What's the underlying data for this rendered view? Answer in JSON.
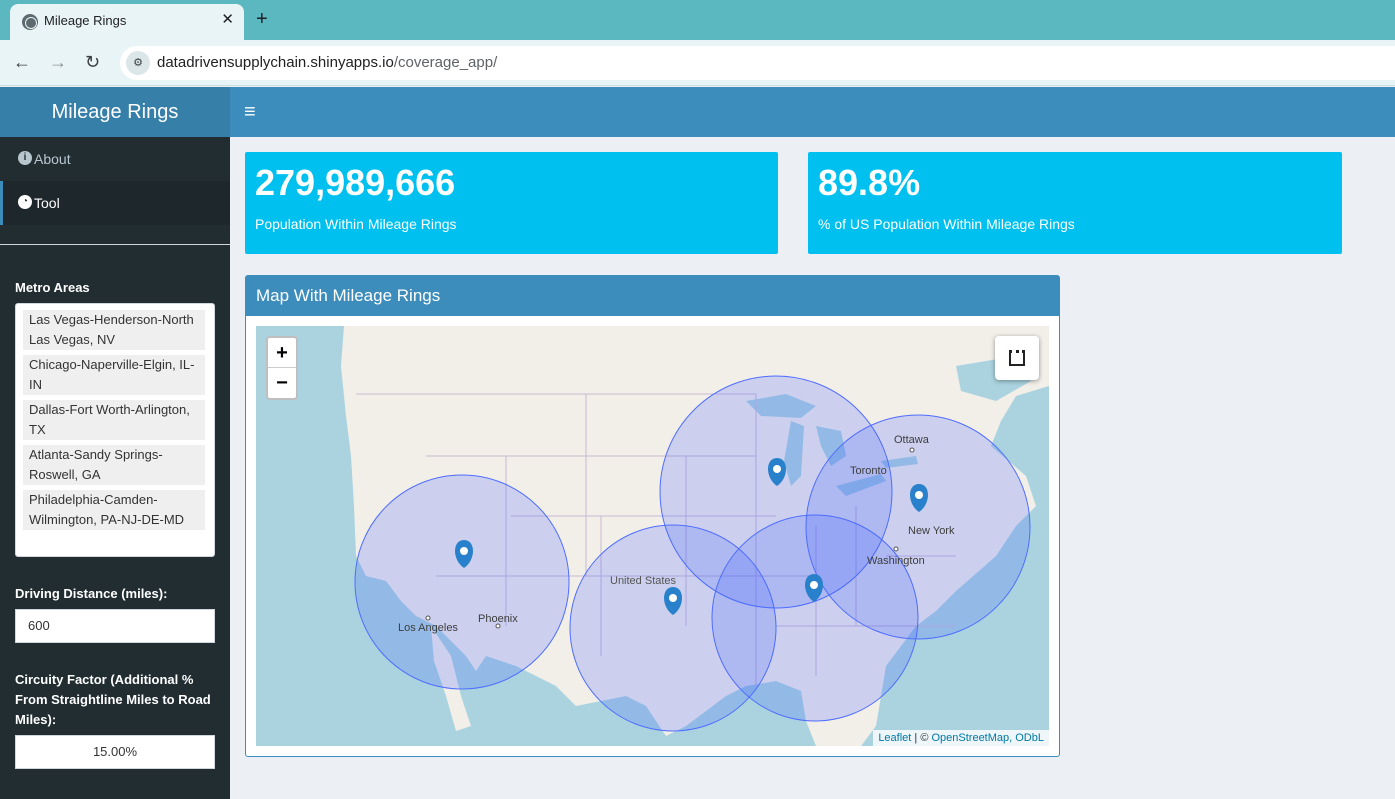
{
  "browser": {
    "tab_title": "Mileage Rings",
    "tab_close": "✕",
    "new_tab": "+",
    "url_host": "datadrivensupplychain.shinyapps.io",
    "url_path": "/coverage_app/",
    "back": "←",
    "forward": "→",
    "reload": "↻"
  },
  "header": {
    "title": "Mileage Rings",
    "menu_toggle": "≡"
  },
  "sidebar": {
    "items": [
      {
        "label": "About",
        "icon": "info-circle-icon"
      },
      {
        "label": "Tool",
        "icon": "dashboard-icon"
      }
    ],
    "metro_label": "Metro Areas",
    "metro_areas": [
      "Las Vegas-Henderson-North Las Vegas, NV",
      "Chicago-Naperville-Elgin, IL-IN",
      "Dallas-Fort Worth-Arlington, TX",
      "Atlanta-Sandy Springs-Roswell, GA",
      "Philadelphia-Camden-Wilmington, PA-NJ-DE-MD"
    ],
    "distance_label": "Driving Distance (miles):",
    "distance_value": "600",
    "circuity_label": "Circuity Factor (Additional % From Straightline Miles to Road Miles):",
    "circuity_value": "15.00%"
  },
  "value_boxes": [
    {
      "value": "279,989,666",
      "subtitle": "Population Within Mileage Rings"
    },
    {
      "value": "89.8%",
      "subtitle": "% of US Population Within Mileage Rings"
    }
  ],
  "map_card": {
    "title": "Map With Mileage Rings",
    "zoom_in": "+",
    "zoom_out": "−",
    "place_labels": {
      "ottawa": "Ottawa",
      "toronto": "Toronto",
      "new_york": "New York",
      "washington": "Washington",
      "united_states": "United States",
      "los_angeles": "Los Angeles",
      "phoenix": "Phoenix"
    },
    "attribution": {
      "leaflet": "Leaflet",
      "separator": " | © ",
      "osm": "OpenStreetMap, ODbL"
    },
    "ring_color": "#3f6cff",
    "marker_color": "#2a81cb"
  }
}
